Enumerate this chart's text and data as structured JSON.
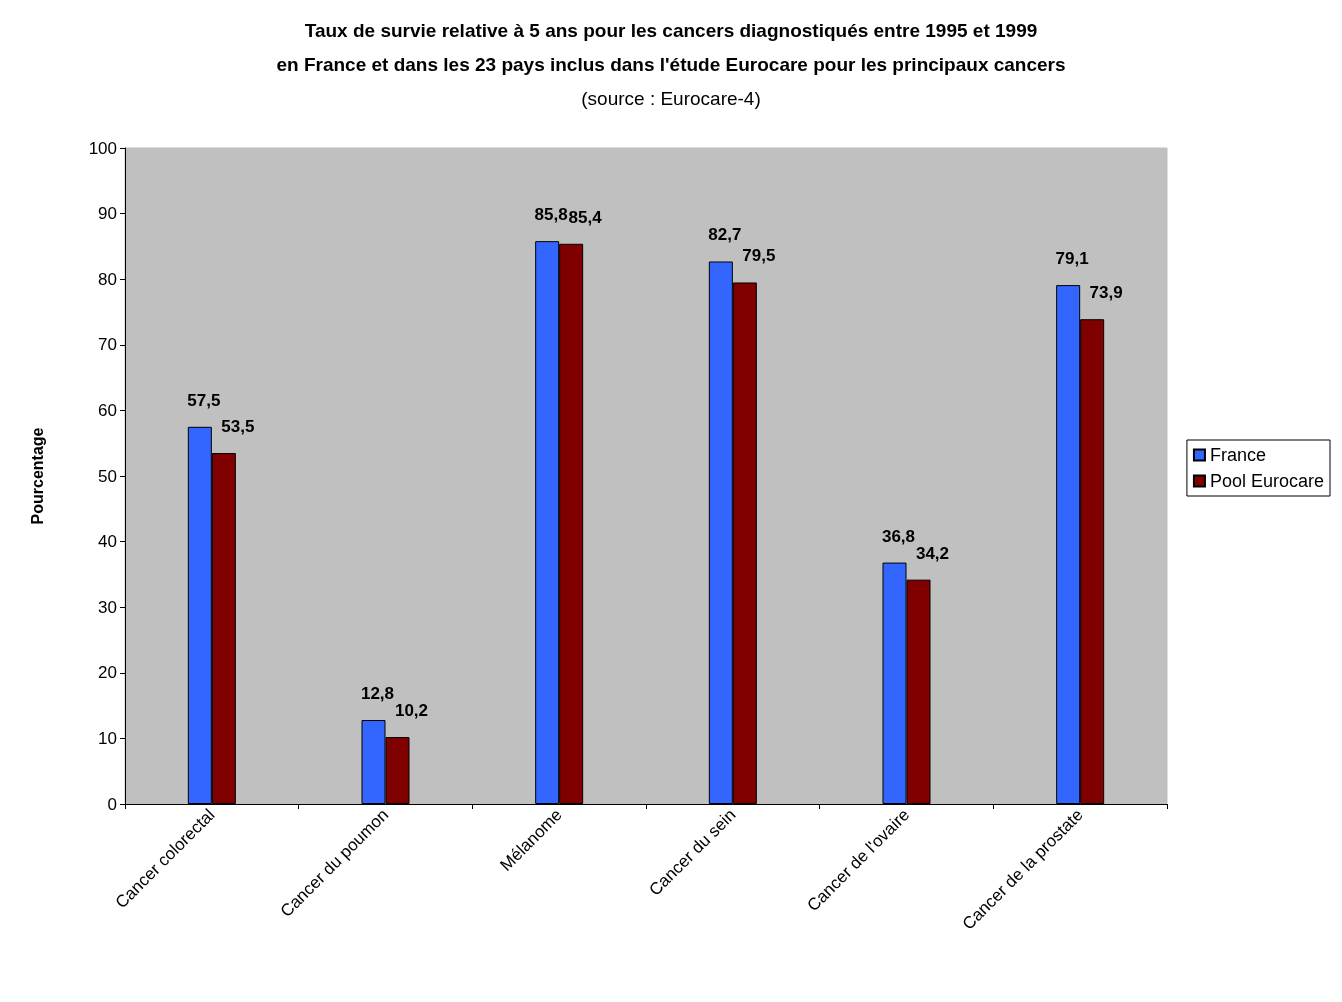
{
  "chart_data": {
    "type": "bar",
    "title": "Taux de survie relative à 5 ans pour les cancers diagnostiqués entre 1995 et 1999\nen France et dans les 23 pays inclus dans l'étude Eurocare pour les principaux cancers",
    "subtitle": "(source : Eurocare-4)",
    "ylabel": "Pourcentage",
    "categories": [
      "Cancer colorectal",
      "Cancer du poumon",
      "Mélanome",
      "Cancer du sein",
      "Cancer de l'ovaire",
      "Cancer de la prostate"
    ],
    "series": [
      {
        "name": "France",
        "color": "#3366ff",
        "values": [
          57.5,
          12.8,
          85.8,
          82.7,
          36.8,
          79.1
        ],
        "value_labels": [
          "57,5",
          "12,8",
          "85,8",
          "82,7",
          "36,8",
          "79,1"
        ]
      },
      {
        "name": "Pool Eurocare",
        "color": "#800000",
        "values": [
          53.5,
          10.2,
          85.4,
          79.5,
          34.2,
          73.9
        ],
        "value_labels": [
          "53,5",
          "10,2",
          "85,4",
          "79,5",
          "34,2",
          "73,9"
        ]
      }
    ],
    "ylim": [
      0,
      100
    ],
    "yticks": [
      0,
      10,
      20,
      30,
      40,
      50,
      60,
      70,
      80,
      90,
      100
    ],
    "grid": false,
    "legend": "right"
  }
}
